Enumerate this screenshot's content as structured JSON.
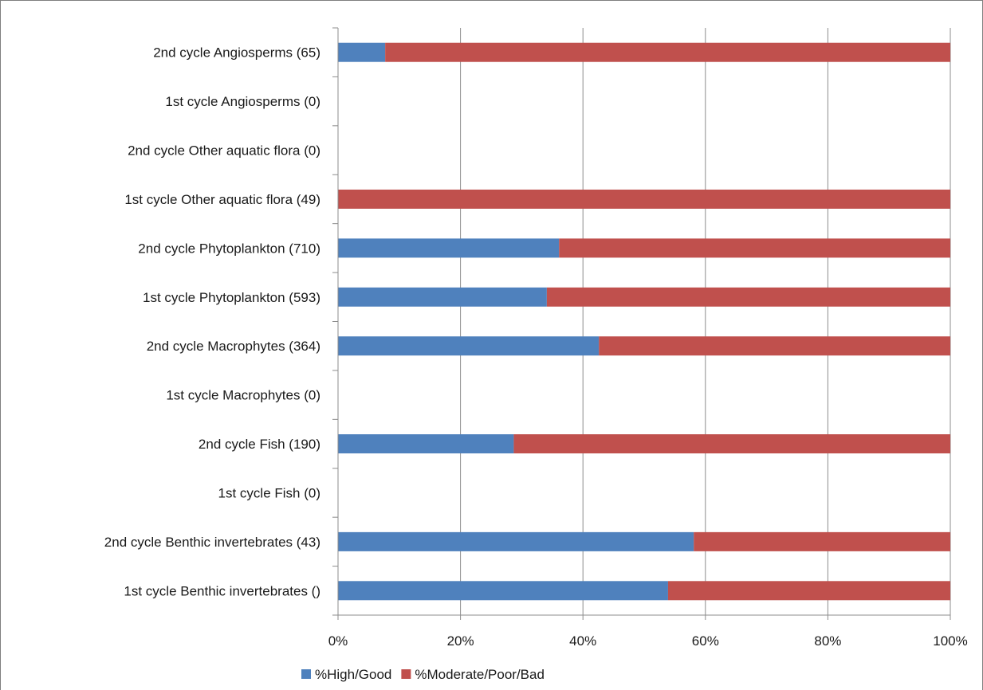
{
  "chart_data": {
    "type": "bar",
    "orientation": "horizontal",
    "stacked": true,
    "categories": [
      "2nd cycle Angiosperms (65)",
      "1st cycle Angiosperms (0)",
      "2nd cycle Other aquatic flora (0)",
      "1st cycle Other aquatic flora (49)",
      "2nd cycle Phytoplankton (710)",
      "1st cycle Phytoplankton (593)",
      "2nd cycle Macrophytes (364)",
      "1st cycle Macrophytes (0)",
      "2nd cycle Fish (190)",
      "1st cycle Fish (0)",
      "2nd cycle Benthic invertebrates (43)",
      "1st cycle Benthic invertebrates ()"
    ],
    "series": [
      {
        "name": "%High/Good",
        "color": "#4f81bd",
        "values": [
          7.7,
          0,
          0,
          0,
          36.1,
          34.1,
          42.6,
          0,
          28.7,
          0,
          58.1,
          53.9
        ]
      },
      {
        "name": "%Moderate/Poor/Bad",
        "color": "#c0504d",
        "values": [
          92.3,
          0,
          0,
          100,
          63.9,
          65.9,
          57.4,
          0,
          71.3,
          0,
          41.9,
          46.1
        ]
      }
    ],
    "xlim": [
      0,
      100
    ],
    "x_ticks": [
      "0%",
      "20%",
      "40%",
      "60%",
      "80%",
      "100%"
    ],
    "title": "",
    "xlabel": "",
    "ylabel": "",
    "grid": "vertical",
    "legend_position": "bottom"
  }
}
